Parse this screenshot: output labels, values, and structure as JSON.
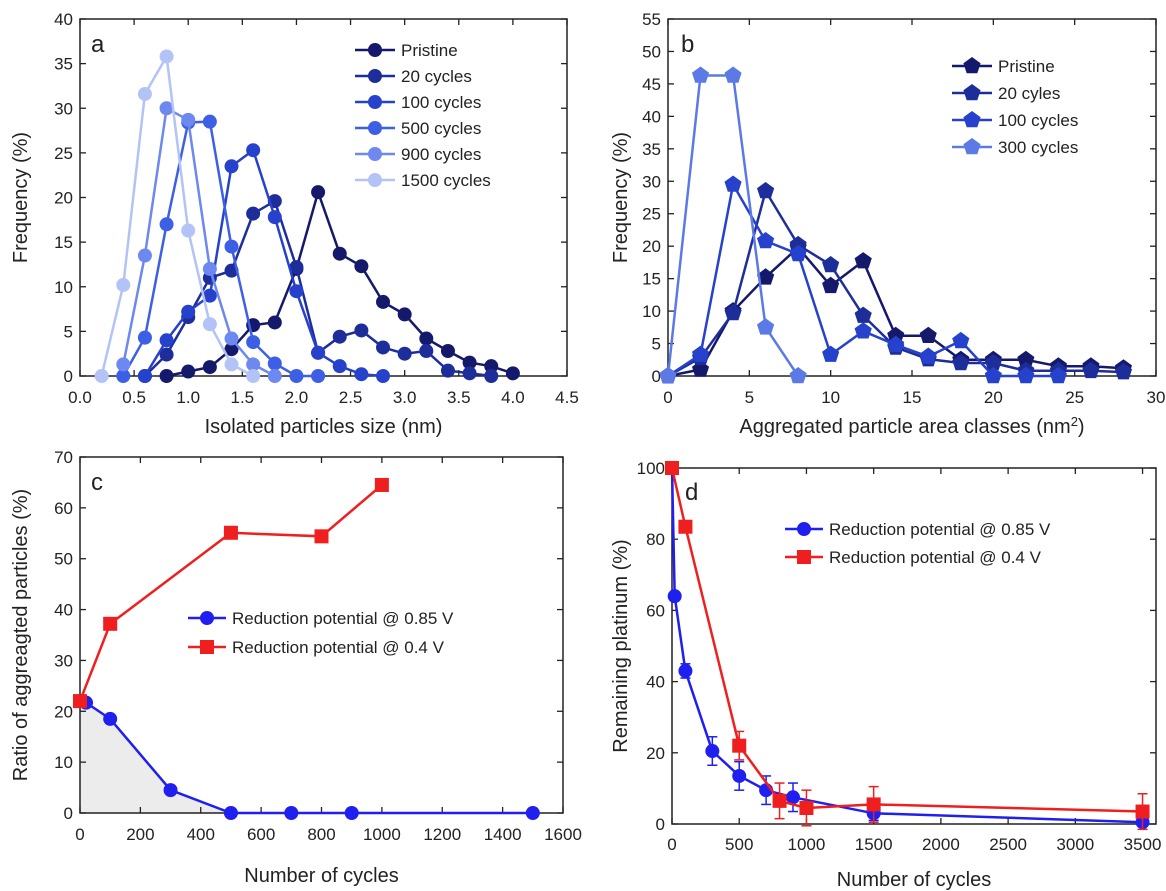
{
  "chart_data": [
    {
      "panel": "a",
      "type": "line",
      "xlabel": "Isolated particles size (nm)",
      "ylabel": "Frequency (%)",
      "xlim": [
        0,
        4.5
      ],
      "ylim": [
        0,
        40
      ],
      "xticks": [
        0.0,
        0.5,
        1.0,
        1.5,
        2.0,
        2.5,
        3.0,
        3.5,
        4.0,
        4.5
      ],
      "xtick_labels": [
        "0.0",
        "0.5",
        "1.0",
        "1.5",
        "2.0",
        "2.5",
        "3.0",
        "3.5",
        "4.0",
        "4.5"
      ],
      "yticks": [
        0,
        5,
        10,
        15,
        20,
        25,
        30,
        35,
        40
      ],
      "ytick_labels": [
        "0",
        "5",
        "10",
        "15",
        "20",
        "25",
        "30",
        "35",
        "40"
      ],
      "legend_position": "top-right",
      "marker": "circle",
      "series": [
        {
          "name": "Pristine",
          "color": "#15196b",
          "x": [
            0.8,
            1.0,
            1.2,
            1.4,
            1.6,
            1.8,
            2.0,
            2.2,
            2.4,
            2.6,
            2.8,
            3.0,
            3.2,
            3.4,
            3.6,
            3.8,
            4.0
          ],
          "y": [
            0,
            0.5,
            1,
            3,
            5.7,
            6,
            12,
            20.6,
            13.7,
            12.3,
            8.3,
            6.9,
            4.2,
            2.8,
            1.5,
            1.1,
            0.3
          ]
        },
        {
          "name": "20 cycles",
          "color": "#1d2d9a",
          "x": [
            0.6,
            0.8,
            1.0,
            1.2,
            1.4,
            1.6,
            1.8,
            2.0,
            2.2,
            2.4,
            2.6,
            2.8,
            3.0,
            3.2,
            3.4,
            3.6,
            3.8
          ],
          "y": [
            0,
            2.4,
            6.6,
            11,
            11.8,
            18.2,
            19.6,
            12.2,
            2.6,
            4.4,
            5.1,
            3.2,
            2.5,
            2.8,
            0.6,
            0.3,
            0
          ]
        },
        {
          "name": "100 cycles",
          "color": "#2642cc",
          "x": [
            0.6,
            0.8,
            1.0,
            1.2,
            1.4,
            1.6,
            1.8,
            2.0,
            2.2,
            2.4,
            2.6,
            2.8
          ],
          "y": [
            0,
            4,
            7.2,
            9,
            23.5,
            25.3,
            17.8,
            9.5,
            2.6,
            1.1,
            0.2,
            0
          ]
        },
        {
          "name": "500 cycles",
          "color": "#3d5fe6",
          "x": [
            0.4,
            0.6,
            0.8,
            1.0,
            1.2,
            1.4,
            1.6,
            1.8,
            2.0,
            2.2
          ],
          "y": [
            0,
            4.3,
            17,
            28.4,
            28.5,
            14.5,
            3.8,
            1.4,
            0,
            0
          ]
        },
        {
          "name": "900 cycles",
          "color": "#6d88ef",
          "x": [
            0.4,
            0.6,
            0.8,
            1.0,
            1.2,
            1.4,
            1.6,
            1.8
          ],
          "y": [
            1.3,
            13.5,
            30,
            28.7,
            12,
            4.2,
            1.3,
            0
          ]
        },
        {
          "name": "1500 cycles",
          "color": "#b3c3f7",
          "x": [
            0.2,
            0.4,
            0.6,
            0.8,
            1.0,
            1.2,
            1.4,
            1.6
          ],
          "y": [
            0,
            10.2,
            31.6,
            35.8,
            16.3,
            5.8,
            1.3,
            0
          ]
        }
      ]
    },
    {
      "panel": "b",
      "type": "line",
      "xlabel": "Aggregated particle area classes (nm",
      "xlabel_superscript": "2",
      "xlabel_suffix": ")",
      "ylabel": "Frequency (%)",
      "xlim": [
        0,
        30
      ],
      "ylim": [
        0,
        55
      ],
      "xticks": [
        0,
        5,
        10,
        15,
        20,
        25,
        30
      ],
      "xtick_labels": [
        "0",
        "5",
        "10",
        "15",
        "20",
        "25",
        "30"
      ],
      "yticks": [
        0,
        5,
        10,
        15,
        20,
        25,
        30,
        35,
        40,
        45,
        50,
        55
      ],
      "ytick_labels": [
        "0",
        "5",
        "10",
        "15",
        "20",
        "25",
        "30",
        "35",
        "40",
        "45",
        "50",
        "55"
      ],
      "legend_position": "top-right",
      "marker": "pentagon",
      "series": [
        {
          "name": "Pristine",
          "color": "#15196b",
          "x": [
            0,
            2,
            4,
            6,
            8,
            10,
            12,
            14,
            16,
            18,
            20,
            22,
            24,
            26,
            28
          ],
          "y": [
            0,
            1,
            10,
            15.2,
            19.8,
            13.9,
            17.7,
            6.2,
            6.2,
            2.5,
            2.5,
            2.5,
            1.5,
            1.5,
            1.2
          ]
        },
        {
          "name": "20 cyles",
          "color": "#1d2d9a",
          "x": [
            0,
            2,
            4,
            6,
            8,
            10,
            12,
            14,
            16,
            18,
            20,
            22,
            24,
            26,
            28
          ],
          "y": [
            0,
            2.8,
            9.7,
            28.5,
            20.2,
            17.1,
            9.3,
            4.4,
            2.6,
            2,
            2,
            0.8,
            0.8,
            0.8,
            0.6
          ]
        },
        {
          "name": "100 cycles",
          "color": "#2642cc",
          "x": [
            0,
            2,
            4,
            6,
            8,
            10,
            12,
            14,
            16,
            18,
            20,
            22,
            24
          ],
          "y": [
            0,
            3.3,
            29.5,
            20.8,
            18.8,
            3.3,
            6.9,
            4.8,
            3,
            5.4,
            0,
            0,
            0
          ]
        },
        {
          "name": "300 cycles",
          "color": "#5b7ae6",
          "x": [
            0,
            2,
            4,
            6,
            8
          ],
          "y": [
            0,
            46.3,
            46.3,
            7.5,
            0
          ]
        }
      ]
    },
    {
      "panel": "c",
      "type": "line",
      "xlabel": "Number of cycles",
      "ylabel": "Ratio of aggreagted particles (%)",
      "xlim": [
        0,
        1600
      ],
      "ylim": [
        0,
        70
      ],
      "xticks": [
        0,
        200,
        400,
        600,
        800,
        1000,
        1200,
        1400,
        1600
      ],
      "xtick_labels": [
        "0",
        "200",
        "400",
        "600",
        "800",
        "1000",
        "1200",
        "1400",
        "1600"
      ],
      "yticks": [
        0,
        10,
        20,
        30,
        40,
        50,
        60,
        70
      ],
      "ytick_labels": [
        "0",
        "10",
        "20",
        "30",
        "40",
        "50",
        "60",
        "70"
      ],
      "legend_position": "center",
      "series": [
        {
          "name": "Reduction potential @ 0.85 V",
          "color": "#1f1fef",
          "marker": "circle",
          "x": [
            0,
            20,
            100,
            300,
            500,
            700,
            900,
            1500
          ],
          "y": [
            22,
            21.7,
            18.5,
            4.5,
            0,
            0,
            0,
            0
          ]
        },
        {
          "name": "Reduction potential @ 0.4 V",
          "color": "#ef1f1f",
          "marker": "square",
          "x": [
            0,
            100,
            500,
            800,
            1000
          ],
          "y": [
            22,
            37.2,
            55.1,
            54.4,
            64.5
          ]
        }
      ]
    },
    {
      "panel": "d",
      "type": "line",
      "xlabel": "Number of cycles",
      "ylabel": "Remaining platinum (%)",
      "xlim": [
        0,
        3600
      ],
      "ylim": [
        0,
        100
      ],
      "xticks": [
        0,
        500,
        1000,
        1500,
        2000,
        2500,
        3000,
        3500
      ],
      "xtick_labels": [
        "0",
        "500",
        "1000",
        "1500",
        "2000",
        "2500",
        "3000",
        "3500"
      ],
      "yticks": [
        0,
        20,
        40,
        60,
        80,
        100
      ],
      "ytick_labels": [
        "0",
        "20",
        "40",
        "60",
        "80",
        "100"
      ],
      "legend_position": "top-right",
      "series": [
        {
          "name": "Reduction potential @ 0.85 V",
          "color": "#1f1fef",
          "marker": "circle",
          "x": [
            0,
            20,
            100,
            300,
            500,
            700,
            900,
            1500,
            3500
          ],
          "y": [
            100,
            64,
            43,
            20.5,
            13.5,
            9.5,
            7.5,
            3,
            0.5
          ],
          "err": [
            0,
            0,
            2,
            4,
            4,
            4,
            4,
            2,
            1
          ]
        },
        {
          "name": "Reduction potential @ 0.4 V",
          "color": "#ef1f1f",
          "marker": "square",
          "x": [
            0,
            100,
            500,
            800,
            1000,
            1500,
            3500
          ],
          "y": [
            100,
            83.5,
            22,
            6.5,
            4.5,
            5.5,
            3.5
          ],
          "err": [
            0,
            0,
            4,
            5,
            5,
            5,
            5
          ]
        }
      ]
    }
  ]
}
